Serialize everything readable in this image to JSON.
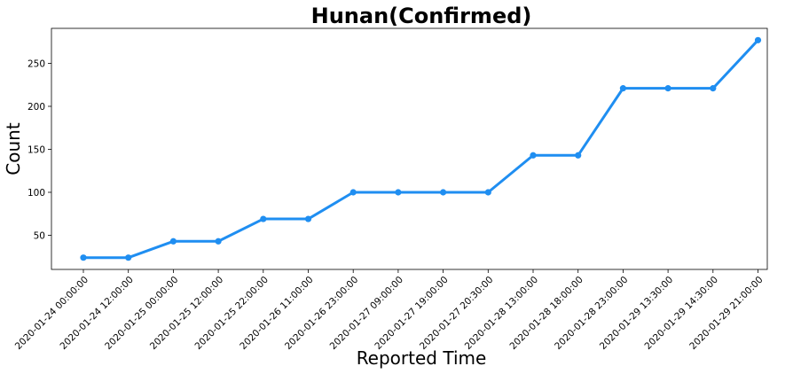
{
  "chart_data": {
    "type": "line",
    "title": "Hunan(Confirmed)",
    "xlabel": "Reported Time",
    "ylabel": "Count",
    "categories": [
      "2020-01-24 00:00:00",
      "2020-01-24 12:00:00",
      "2020-01-25 00:00:00",
      "2020-01-25 12:00:00",
      "2020-01-25 22:00:00",
      "2020-01-26 11:00:00",
      "2020-01-26 23:00:00",
      "2020-01-27 09:00:00",
      "2020-01-27 19:00:00",
      "2020-01-27 20:30:00",
      "2020-01-28 13:00:00",
      "2020-01-28 18:00:00",
      "2020-01-28 23:00:00",
      "2020-01-29 13:30:00",
      "2020-01-29 14:30:00",
      "2020-01-29 21:00:00"
    ],
    "series": [
      {
        "values": [
          24,
          24,
          43,
          43,
          69,
          69,
          100,
          100,
          100,
          100,
          143,
          143,
          221,
          221,
          221,
          277
        ]
      }
    ],
    "yticks": [
      50,
      100,
      150,
      200,
      250
    ],
    "ylim": [
      10.3,
      290.7
    ],
    "grid": false,
    "legend": "none",
    "line_color": "#1f8ef1"
  }
}
